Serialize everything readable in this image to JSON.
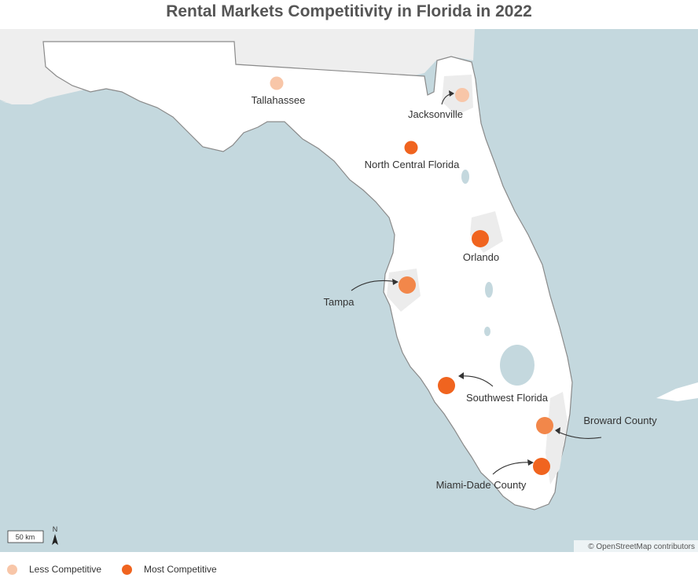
{
  "title": "Rental Markets Competitivity in Florida in 2022",
  "colors": {
    "water": "#c4d8de",
    "land_other": "#eeeeee",
    "florida": "#ffffff",
    "urban": "#ececec",
    "less_competitive": "#f8c6a8",
    "mid_competitive": "#f2874a",
    "most_competitive": "#f0641f"
  },
  "markets": [
    {
      "name": "Tallahassee",
      "level": "Less Competitive"
    },
    {
      "name": "Jacksonville",
      "level": "Less Competitive"
    },
    {
      "name": "North Central Florida",
      "level": "Most Competitive"
    },
    {
      "name": "Orlando",
      "level": "Most Competitive"
    },
    {
      "name": "Tampa",
      "level": "Most Competitive"
    },
    {
      "name": "Southwest Florida",
      "level": "Most Competitive"
    },
    {
      "name": "Broward County",
      "level": "Most Competitive"
    },
    {
      "name": "Miami-Dade County",
      "level": "Most Competitive"
    }
  ],
  "scale": {
    "label": "50 km",
    "north": "N"
  },
  "credit": "© OpenStreetMap contributors",
  "legend": [
    {
      "label": "Less Competitive",
      "color": "#f8c6a8"
    },
    {
      "label": "Most Competitive",
      "color": "#f0641f"
    }
  ]
}
